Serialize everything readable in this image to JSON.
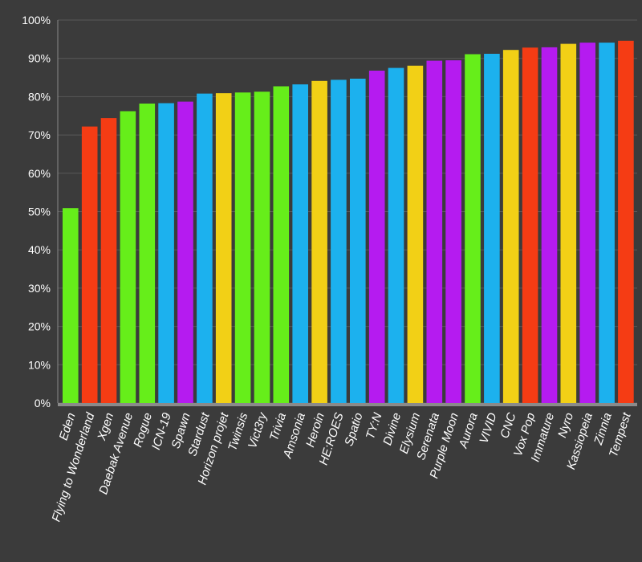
{
  "colors": {
    "background": "#3b3b3b",
    "grid": "#595959",
    "axis": "#8a8a8a",
    "green": "#66ee1a",
    "red": "#f53c14",
    "blue": "#1cb1ee",
    "purple": "#b51bf0",
    "yellow": "#f2d016"
  },
  "chart_data": {
    "type": "bar",
    "ylim": [
      0,
      100
    ],
    "y_ticks": [
      "0%",
      "10%",
      "20%",
      "30%",
      "40%",
      "50%",
      "60%",
      "70%",
      "80%",
      "90%",
      "100%"
    ],
    "grid": true,
    "categories": [
      "Eden",
      "Flying to Wonderland",
      "Xgen",
      "Daebak Avenue",
      "Rogue",
      "ICN-19",
      "Spawn",
      "Stardust",
      "Horizon projet",
      "Twinsis",
      "Vict3ry",
      "Trivia",
      "Amsonia",
      "Heroin",
      "HE:ROES",
      "Spatio",
      "TY:N",
      "Divine",
      "Elysium",
      "Serenata",
      "Purple Moon",
      "Aurora",
      "VIVID",
      "CNC",
      "Vox Pop",
      "Immature",
      "Nyro",
      "Kassiopeia",
      "Zinnia",
      "Tempest"
    ],
    "values": [
      50.9,
      72.2,
      74.4,
      76.2,
      78.2,
      78.3,
      78.7,
      80.8,
      80.9,
      81.1,
      81.3,
      82.7,
      83.2,
      84.1,
      84.4,
      84.7,
      86.8,
      87.5,
      88.1,
      89.4,
      89.5,
      91.1,
      91.2,
      92.2,
      92.8,
      92.9,
      93.8,
      94.1,
      94.1,
      94.6
    ],
    "bar_colors": [
      "green",
      "red",
      "red",
      "green",
      "green",
      "blue",
      "purple",
      "blue",
      "yellow",
      "green",
      "green",
      "green",
      "blue",
      "yellow",
      "blue",
      "blue",
      "purple",
      "blue",
      "yellow",
      "purple",
      "purple",
      "green",
      "blue",
      "yellow",
      "red",
      "purple",
      "yellow",
      "purple",
      "blue",
      "red"
    ]
  }
}
